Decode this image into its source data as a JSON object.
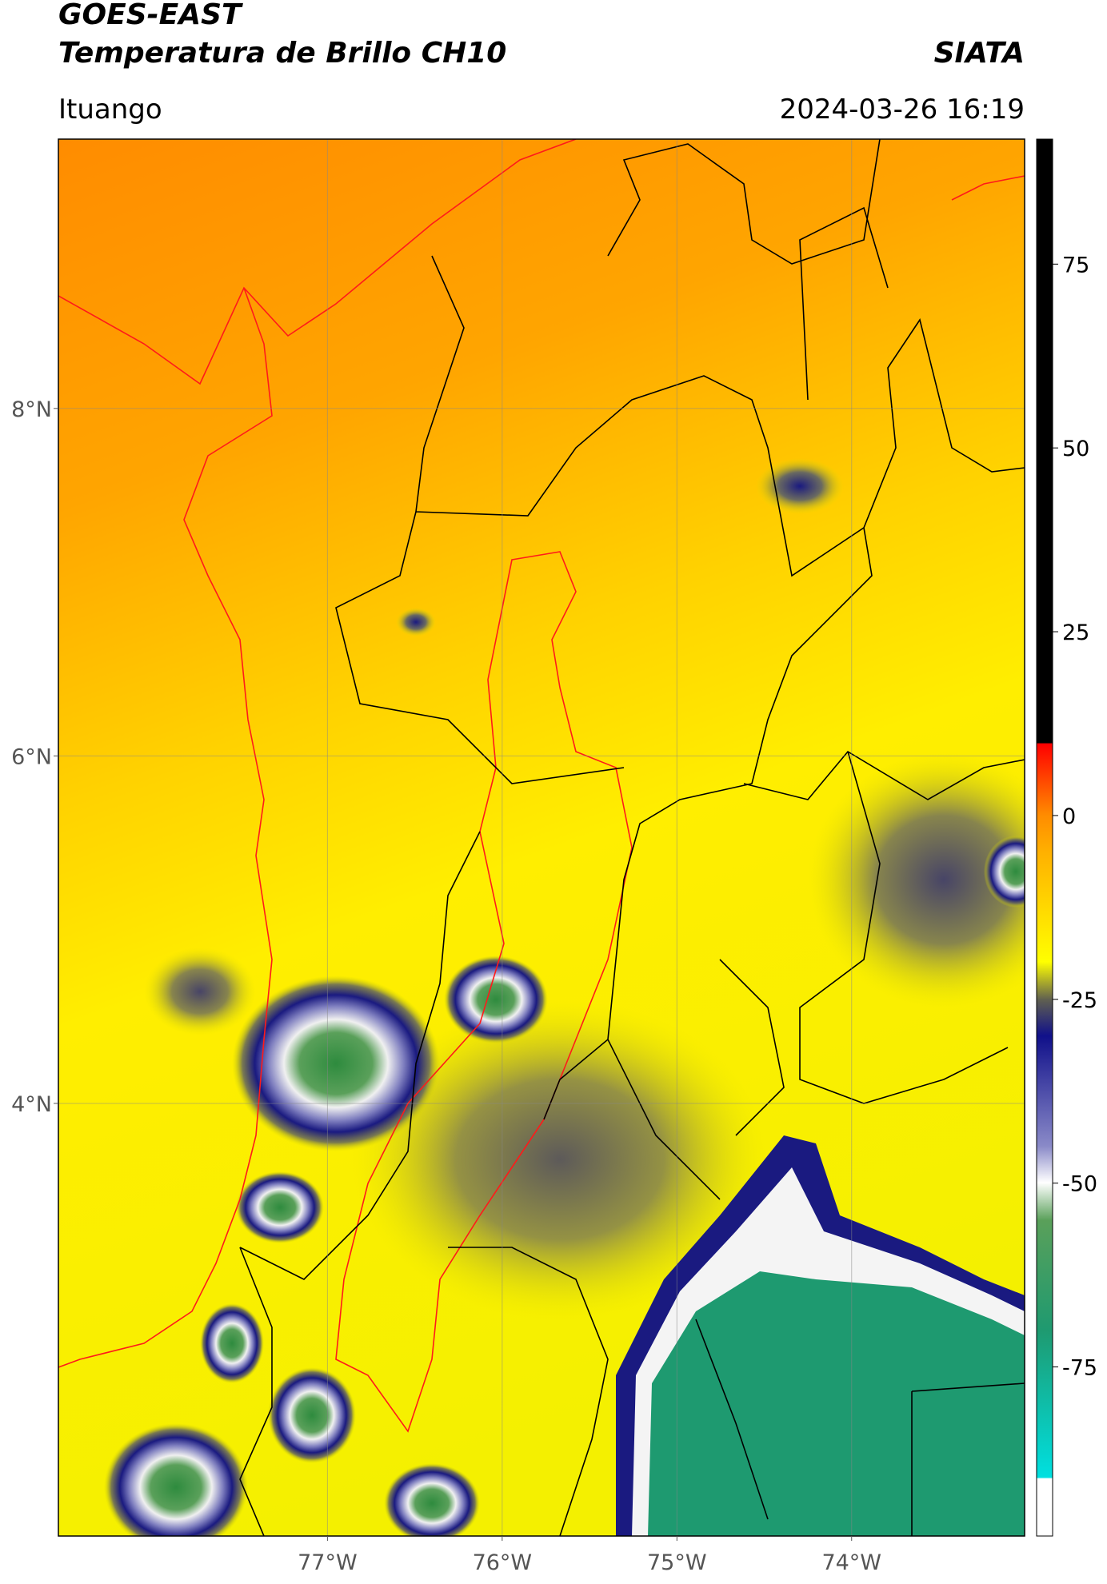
{
  "map": {
    "title": "GOES-EAST",
    "subtitle": "Temperatura de Brillo CH10",
    "source": "SIATA",
    "location": "Ituango",
    "datetime": "2024-03-26 16:19",
    "xlim": [
      -78.54,
      -73.01
    ],
    "ylim": [
      1.51,
      9.55
    ],
    "xticks": [
      {
        "value": -77,
        "label": "77°W"
      },
      {
        "value": -76,
        "label": "76°W"
      },
      {
        "value": -75,
        "label": "75°W"
      },
      {
        "value": -74,
        "label": "74°W"
      }
    ],
    "yticks": [
      {
        "value": 8,
        "label": "8°N"
      },
      {
        "value": 6,
        "label": "6°N"
      },
      {
        "value": 4,
        "label": "4°N"
      }
    ],
    "colorbar": {
      "lim": [
        -98,
        92
      ],
      "ticks": [
        75,
        50,
        25,
        0,
        -25,
        -50,
        -75
      ]
    }
  }
}
